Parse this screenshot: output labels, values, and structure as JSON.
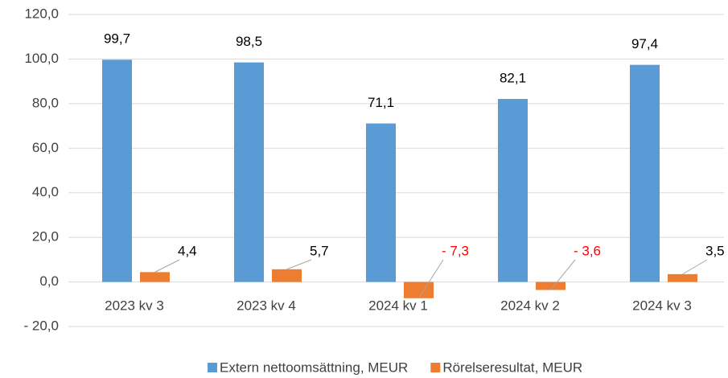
{
  "chart_data": {
    "type": "bar",
    "categories": [
      "2023 kv 3",
      "2023 kv 4",
      "2024 kv 1",
      "2024 kv 2",
      "2024 kv 3"
    ],
    "series": [
      {
        "name": "Extern nettoomsättning, MEUR",
        "color": "#5b9bd5",
        "values": [
          99.7,
          98.5,
          71.1,
          82.1,
          97.4
        ],
        "value_labels": [
          "99,7",
          "98,5",
          "71,1",
          "82,1",
          "97,4"
        ]
      },
      {
        "name": "Rörelseresultat, MEUR",
        "color": "#ed7d31",
        "values": [
          4.4,
          5.7,
          -7.3,
          -3.6,
          3.5
        ],
        "value_labels": [
          "4,4",
          "5,7",
          "- 7,3",
          "- 3,6",
          "3,5"
        ]
      }
    ],
    "ylim": [
      -20,
      120
    ],
    "yticks": [
      {
        "value": -20,
        "label": "- 20,0"
      },
      {
        "value": 0,
        "label": "0,0"
      },
      {
        "value": 20,
        "label": "20,0"
      },
      {
        "value": 40,
        "label": "40,0"
      },
      {
        "value": 60,
        "label": "60,0"
      },
      {
        "value": 80,
        "label": "80,0"
      },
      {
        "value": 100,
        "label": "100,0"
      },
      {
        "value": 120,
        "label": "120,0"
      }
    ],
    "grid": true,
    "legend": "bottom",
    "negative_label_color": "#ff0000"
  }
}
